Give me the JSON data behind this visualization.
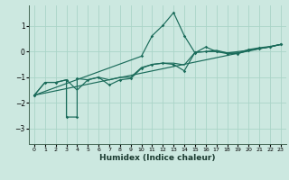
{
  "xlabel": "Humidex (Indice chaleur)",
  "bg_color": "#cce8e0",
  "grid_color": "#aad4c8",
  "line_color": "#1a6b5a",
  "xlim": [
    -0.5,
    23.5
  ],
  "ylim": [
    -3.6,
    1.8
  ],
  "yticks": [
    -3,
    -2,
    -1,
    0,
    1
  ],
  "xticks": [
    0,
    1,
    2,
    3,
    4,
    5,
    6,
    7,
    8,
    9,
    10,
    11,
    12,
    13,
    14,
    15,
    16,
    17,
    18,
    19,
    20,
    21,
    22,
    23
  ],
  "line1_x": [
    0,
    1,
    2,
    3,
    3,
    4,
    4,
    5,
    6,
    7,
    8,
    9,
    10,
    11,
    12,
    13,
    14,
    15,
    16,
    17,
    18,
    19,
    20,
    21,
    22,
    23
  ],
  "line1_y": [
    -1.7,
    -1.2,
    -1.2,
    -1.1,
    -2.55,
    -2.55,
    -1.05,
    -1.1,
    -1.0,
    -1.3,
    -1.1,
    -1.05,
    -0.65,
    -0.5,
    -0.45,
    -0.5,
    -0.75,
    -0.03,
    0.0,
    0.0,
    -0.05,
    -0.05,
    0.08,
    0.15,
    0.2,
    0.28
  ],
  "line2_x": [
    0,
    23
  ],
  "line2_y": [
    -1.7,
    0.28
  ],
  "line3_x": [
    0,
    10,
    11,
    12,
    13,
    14,
    15,
    16,
    17,
    18,
    19,
    20,
    21,
    22,
    23
  ],
  "line3_y": [
    -1.7,
    -0.18,
    0.62,
    1.02,
    1.52,
    0.62,
    -0.05,
    0.18,
    0.0,
    -0.08,
    -0.08,
    0.05,
    0.12,
    0.18,
    0.28
  ],
  "line4_x": [
    0,
    1,
    2,
    3,
    4,
    5,
    6,
    7,
    8,
    9,
    10,
    11,
    12,
    13,
    14,
    15,
    16,
    17,
    18,
    19,
    20,
    21,
    22,
    23
  ],
  "line4_y": [
    -1.7,
    -1.2,
    -1.2,
    -1.1,
    -1.5,
    -1.1,
    -1.0,
    -1.1,
    -1.0,
    -1.0,
    -0.62,
    -0.5,
    -0.45,
    -0.45,
    -0.52,
    -0.03,
    0.0,
    0.05,
    -0.05,
    0.0,
    0.05,
    0.12,
    0.18,
    0.28
  ]
}
